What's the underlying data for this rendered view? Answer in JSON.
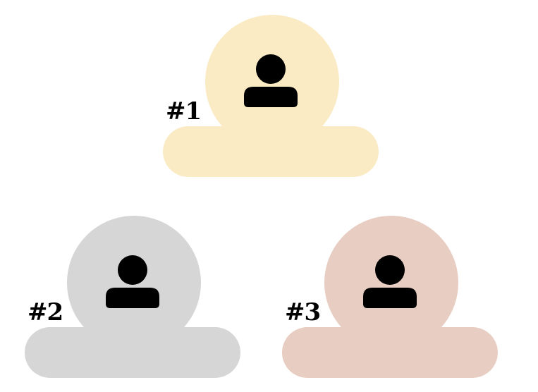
{
  "podiums": [
    {
      "rank_label": "#1",
      "color": "#faebc5",
      "icon": "user-icon"
    },
    {
      "rank_label": "#2",
      "color": "#d6d6d6",
      "icon": "user-icon"
    },
    {
      "rank_label": "#3",
      "color": "#e8cdc3",
      "icon": "user-icon"
    }
  ]
}
